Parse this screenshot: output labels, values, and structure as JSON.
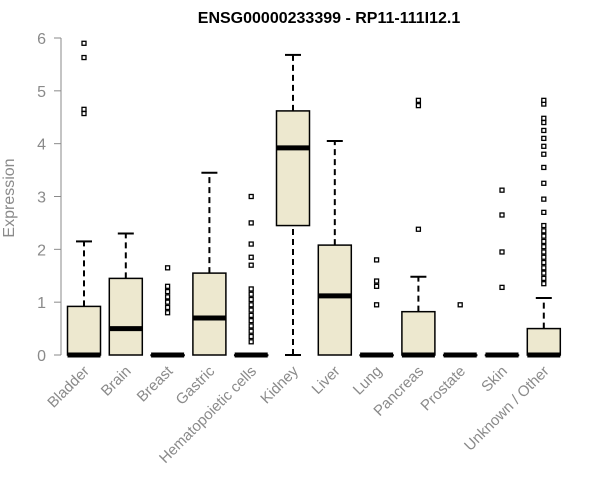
{
  "chart_data": {
    "type": "boxplot",
    "title": "ENSG00000233399 - RP11-111I12.1",
    "xlabel": "",
    "ylabel": "Expression",
    "ylim": [
      0,
      6
    ],
    "yticks": [
      "0",
      "1",
      "2",
      "3",
      "4",
      "5",
      "6"
    ],
    "grid": false,
    "colors": {
      "box_fill": "#ede8cf",
      "box_stroke": "#000000",
      "axis": "#8a8a8a",
      "text": "#8a8a8a"
    },
    "categories": [
      "Bladder",
      "Brain",
      "Breast",
      "Gastric",
      "Hematopoietic cells",
      "Kidney",
      "Liver",
      "Lung",
      "Pancreas",
      "Prostate",
      "Skin",
      "Unknown / Other"
    ],
    "boxes": [
      {
        "category": "Bladder",
        "whisker_low": 0,
        "q1": 0,
        "median": 0,
        "q3": 0.92,
        "whisker_high": 2.15,
        "outliers": [
          4.57,
          4.65,
          5.63,
          5.9
        ]
      },
      {
        "category": "Brain",
        "whisker_low": 0,
        "q1": 0,
        "median": 0.5,
        "q3": 1.45,
        "whisker_high": 2.3,
        "outliers": []
      },
      {
        "category": "Breast",
        "whisker_low": 0,
        "q1": 0,
        "median": 0,
        "q3": 0,
        "whisker_high": 0,
        "outliers": [
          0.8,
          0.9,
          1.0,
          1.1,
          1.2,
          1.3,
          1.65
        ]
      },
      {
        "category": "Gastric",
        "whisker_low": 0,
        "q1": 0,
        "median": 0.7,
        "q3": 1.55,
        "whisker_high": 3.45,
        "outliers": []
      },
      {
        "category": "Hematopoietic cells",
        "whisker_low": 0,
        "q1": 0,
        "median": 0,
        "q3": 0,
        "whisker_high": 0,
        "outliers": [
          0.25,
          0.35,
          0.45,
          0.55,
          0.65,
          0.75,
          0.85,
          0.95,
          1.05,
          1.15,
          1.25,
          1.7,
          1.85,
          2.1,
          2.5,
          3.0
        ]
      },
      {
        "category": "Kidney",
        "whisker_low": 0,
        "q1": 2.45,
        "median": 3.92,
        "q3": 4.62,
        "whisker_high": 5.68,
        "outliers": []
      },
      {
        "category": "Liver",
        "whisker_low": 0,
        "q1": 0,
        "median": 1.12,
        "q3": 2.08,
        "whisker_high": 4.05,
        "outliers": []
      },
      {
        "category": "Lung",
        "whisker_low": 0,
        "q1": 0,
        "median": 0,
        "q3": 0,
        "whisker_high": 0,
        "outliers": [
          0.95,
          1.3,
          1.4,
          1.8
        ]
      },
      {
        "category": "Pancreas",
        "whisker_low": 0,
        "q1": 0,
        "median": 0,
        "q3": 0.82,
        "whisker_high": 1.48,
        "outliers": [
          2.38,
          4.72,
          4.82
        ]
      },
      {
        "category": "Prostate",
        "whisker_low": 0,
        "q1": 0,
        "median": 0,
        "q3": 0,
        "whisker_high": 0,
        "outliers": [
          0.95
        ]
      },
      {
        "category": "Skin",
        "whisker_low": 0,
        "q1": 0,
        "median": 0,
        "q3": 0,
        "whisker_high": 0,
        "outliers": [
          1.28,
          1.95,
          2.65,
          3.12
        ]
      },
      {
        "category": "Unknown / Other",
        "whisker_low": 0,
        "q1": 0,
        "median": 0,
        "q3": 0.5,
        "whisker_high": 1.08,
        "outliers": [
          1.35,
          1.45,
          1.55,
          1.65,
          1.75,
          1.85,
          1.95,
          2.05,
          2.15,
          2.25,
          2.35,
          2.45,
          2.7,
          2.95,
          3.25,
          3.55,
          3.8,
          3.95,
          4.1,
          4.25,
          4.4,
          4.48,
          4.75,
          4.82
        ]
      }
    ]
  }
}
